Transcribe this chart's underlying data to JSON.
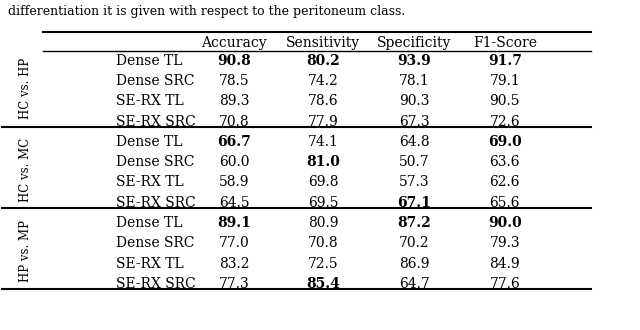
{
  "caption": "differentiation it is given with respect to the peritoneum class.",
  "groups": [
    {
      "label": "HC vs. HP",
      "rows": [
        {
          "model": "Dense TL",
          "accuracy": "90.8",
          "sensitivity": "80.2",
          "specificity": "93.9",
          "f1": "91.7",
          "bold": [
            true,
            true,
            true,
            true
          ]
        },
        {
          "model": "Dense SRC",
          "accuracy": "78.5",
          "sensitivity": "74.2",
          "specificity": "78.1",
          "f1": "79.1",
          "bold": [
            false,
            false,
            false,
            false
          ]
        },
        {
          "model": "SE-RX TL",
          "accuracy": "89.3",
          "sensitivity": "78.6",
          "specificity": "90.3",
          "f1": "90.5",
          "bold": [
            false,
            false,
            false,
            false
          ]
        },
        {
          "model": "SE-RX SRC",
          "accuracy": "70.8",
          "sensitivity": "77.9",
          "specificity": "67.3",
          "f1": "72.6",
          "bold": [
            false,
            false,
            false,
            false
          ]
        }
      ]
    },
    {
      "label": "HC vs. MC",
      "rows": [
        {
          "model": "Dense TL",
          "accuracy": "66.7",
          "sensitivity": "74.1",
          "specificity": "64.8",
          "f1": "69.0",
          "bold": [
            true,
            false,
            false,
            true
          ]
        },
        {
          "model": "Dense SRC",
          "accuracy": "60.0",
          "sensitivity": "81.0",
          "specificity": "50.7",
          "f1": "63.6",
          "bold": [
            false,
            true,
            false,
            false
          ]
        },
        {
          "model": "SE-RX TL",
          "accuracy": "58.9",
          "sensitivity": "69.8",
          "specificity": "57.3",
          "f1": "62.6",
          "bold": [
            false,
            false,
            false,
            false
          ]
        },
        {
          "model": "SE-RX SRC",
          "accuracy": "64.5",
          "sensitivity": "69.5",
          "specificity": "67.1",
          "f1": "65.6",
          "bold": [
            false,
            false,
            true,
            false
          ]
        }
      ]
    },
    {
      "label": "HP vs. MP",
      "rows": [
        {
          "model": "Dense TL",
          "accuracy": "89.1",
          "sensitivity": "80.9",
          "specificity": "87.2",
          "f1": "90.0",
          "bold": [
            true,
            false,
            true,
            true
          ]
        },
        {
          "model": "Dense SRC",
          "accuracy": "77.0",
          "sensitivity": "70.8",
          "specificity": "70.2",
          "f1": "79.3",
          "bold": [
            false,
            false,
            false,
            false
          ]
        },
        {
          "model": "SE-RX TL",
          "accuracy": "83.2",
          "sensitivity": "72.5",
          "specificity": "86.9",
          "f1": "84.9",
          "bold": [
            false,
            false,
            false,
            false
          ]
        },
        {
          "model": "SE-RX SRC",
          "accuracy": "77.3",
          "sensitivity": "85.4",
          "specificity": "64.7",
          "f1": "77.6",
          "bold": [
            false,
            true,
            false,
            false
          ]
        }
      ]
    }
  ],
  "headers": [
    "Accuracy",
    "Sensitivity",
    "Specificity",
    "F1-Score"
  ],
  "background_color": "#ffffff",
  "header_fontsize": 10,
  "cell_fontsize": 10,
  "label_fontsize": 8.5
}
